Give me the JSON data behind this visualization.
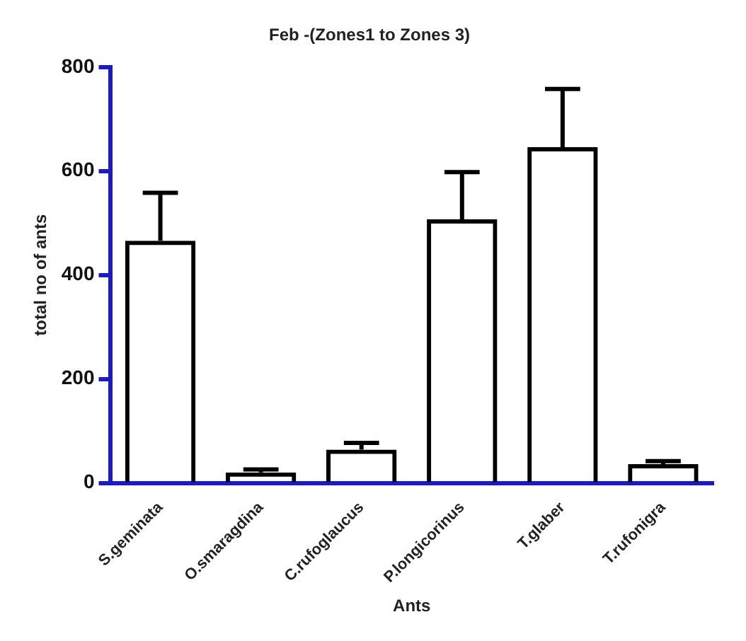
{
  "chart_data": {
    "type": "bar",
    "title": "Feb -(Zones1 to Zones 3)",
    "xlabel": "Ants",
    "ylabel": "total no of ants",
    "categories": [
      "S.geminata",
      "O.smaragdina",
      "C.rufoglaucus",
      "P.longicorinus",
      "T.glaber",
      "T.rufonigra"
    ],
    "values": [
      466,
      20,
      64,
      507,
      646,
      36
    ],
    "errors": [
      [
        466,
        558
      ],
      [
        20,
        26
      ],
      [
        64,
        77
      ],
      [
        507,
        598
      ],
      [
        646,
        758
      ],
      [
        36,
        42
      ]
    ],
    "color": "#000000",
    "ylim": [
      0,
      800
    ],
    "yticks": [
      0,
      200,
      400,
      600,
      800
    ],
    "grid": false,
    "legend": false
  }
}
